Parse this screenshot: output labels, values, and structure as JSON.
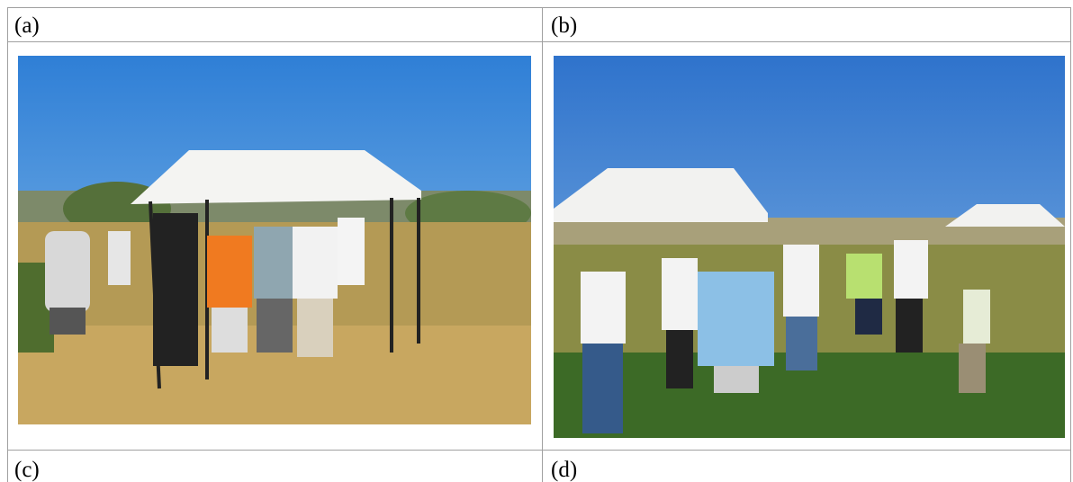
{
  "table": {
    "rows": [
      [
        "(a)",
        "(b)"
      ],
      [
        "(c)",
        "(d)"
      ]
    ]
  }
}
